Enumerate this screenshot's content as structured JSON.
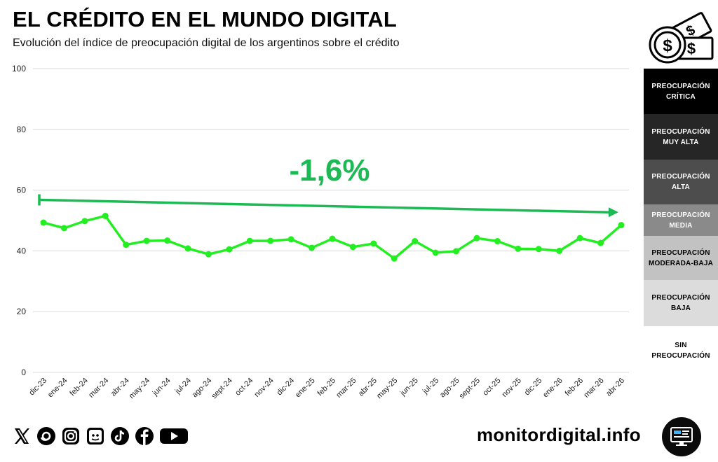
{
  "header": {
    "title": "EL CRÉDITO EN EL MUNDO DIGITAL",
    "subtitle": "Evolución del índice de preocupación digital de los argentinos sobre el crédito"
  },
  "chart_data": {
    "type": "line",
    "categories": [
      "dic-23",
      "ene-24",
      "feb-24",
      "mar-24",
      "abr-24",
      "may-24",
      "jun-24",
      "jul-24",
      "ago-24",
      "sept-24",
      "oct-24",
      "nov-24",
      "dic-24",
      "ene-25",
      "feb-25",
      "mar-25",
      "abr-25",
      "may-25",
      "jun-25",
      "jul-25",
      "ago-25",
      "sept-25",
      "oct-25",
      "nov-25",
      "dic-25",
      "ene-26",
      "feb-26",
      "mar-26",
      "abr-26"
    ],
    "series": [
      {
        "values": [
          49.3,
          47.5,
          49.8,
          51.5,
          42.0,
          43.3,
          43.4,
          40.8,
          38.9,
          40.5,
          43.3,
          43.3,
          43.8,
          41.0,
          44.0,
          41.3,
          42.4,
          37.5,
          43.2,
          39.4,
          39.9,
          44.2,
          43.2,
          40.7,
          40.6,
          40.0,
          44.2,
          42.6,
          48.5
        ],
        "color": "#22ee22"
      }
    ],
    "trend": {
      "start": 56.8,
      "end": 52.7,
      "label": "-1,6%",
      "color": "#1db954"
    },
    "ylim": [
      0,
      100
    ],
    "yticks": [
      0,
      20,
      40,
      60,
      80,
      100
    ],
    "grid": true
  },
  "legend": {
    "bands": [
      {
        "label": "PREOCUPACIÓN CRÍTICA",
        "bg": "#000000",
        "fg": "#ffffff"
      },
      {
        "label": "PREOCUPACIÓN MUY ALTA",
        "bg": "#262626",
        "fg": "#ffffff"
      },
      {
        "label": "PREOCUPACIÓN ALTA",
        "bg": "#4d4d4d",
        "fg": "#ffffff"
      },
      {
        "label": "PREOCUPACIÓN MEDIA",
        "bg": "#8a8a8a",
        "fg": "#ffffff"
      },
      {
        "label": "PREOCUPACIÓN MODERADA-BAJA",
        "bg": "#c2c2c2",
        "fg": "#000000"
      },
      {
        "label": "PREOCUPACIÓN BAJA",
        "bg": "#dcdcdc",
        "fg": "#000000"
      },
      {
        "label": "SIN PREOCUPACIÓN",
        "bg": "#ffffff",
        "fg": "#000000"
      }
    ]
  },
  "footer": {
    "site": "monitordigital.info",
    "social_icons": [
      "x-icon",
      "threads-icon",
      "instagram-icon",
      "substack-icon",
      "tiktok-icon",
      "facebook-icon",
      "youtube-icon"
    ]
  }
}
